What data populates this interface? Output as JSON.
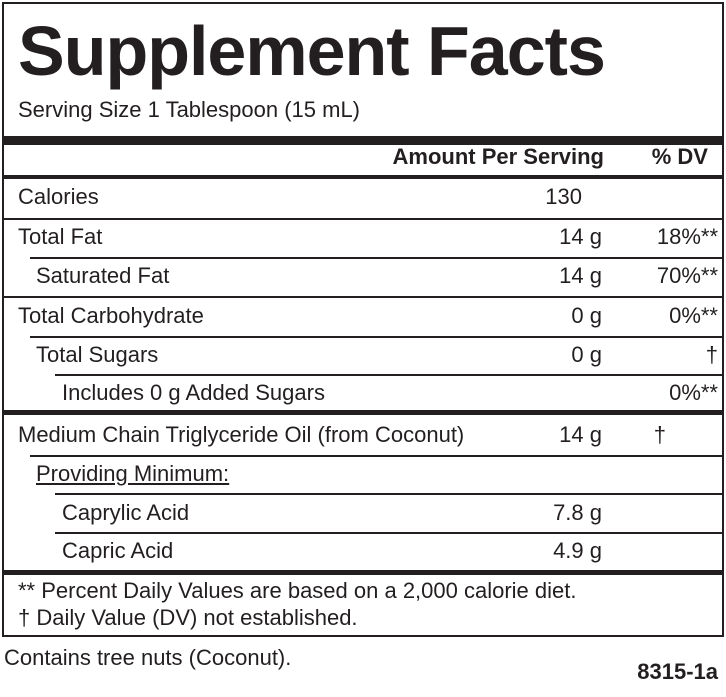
{
  "title": "Supplement Facts",
  "serving_size": "Serving Size 1 Tablespoon (15 mL)",
  "table": {
    "header": [
      "Amount Per Serving",
      "% DV"
    ],
    "rows": [
      {
        "name": "Calories",
        "amount": "130"
      },
      {
        "name": "Total Fat",
        "amount": "14 g",
        "dv": "18%**"
      },
      {
        "name": "Saturated Fat",
        "amount": "14 g",
        "dv": "70%**"
      },
      {
        "name": "Total Carbohydrate",
        "amount": "0 g",
        "dv": "0%**"
      },
      {
        "name": "Total Sugars",
        "amount": "0 g",
        "dv": "†"
      },
      {
        "name": "Includes 0 g Added Sugars",
        "dv": "0%**"
      },
      {
        "name": "Medium Chain Triglyceride Oil (from Coconut)",
        "amount": "14 g",
        "dv": "†"
      },
      {
        "name": "Providing Minimum:"
      },
      {
        "name": "Caprylic Acid",
        "amount": "7.8 g"
      },
      {
        "name": "Capric Acid",
        "amount": "4.9 g"
      }
    ]
  },
  "footnotes": [
    "** Percent Daily Values are based on a 2,000 calorie diet.",
    "† Daily Value (DV) not established."
  ],
  "allergen": "Contains tree nuts (Coconut).",
  "code": "8315-1a"
}
